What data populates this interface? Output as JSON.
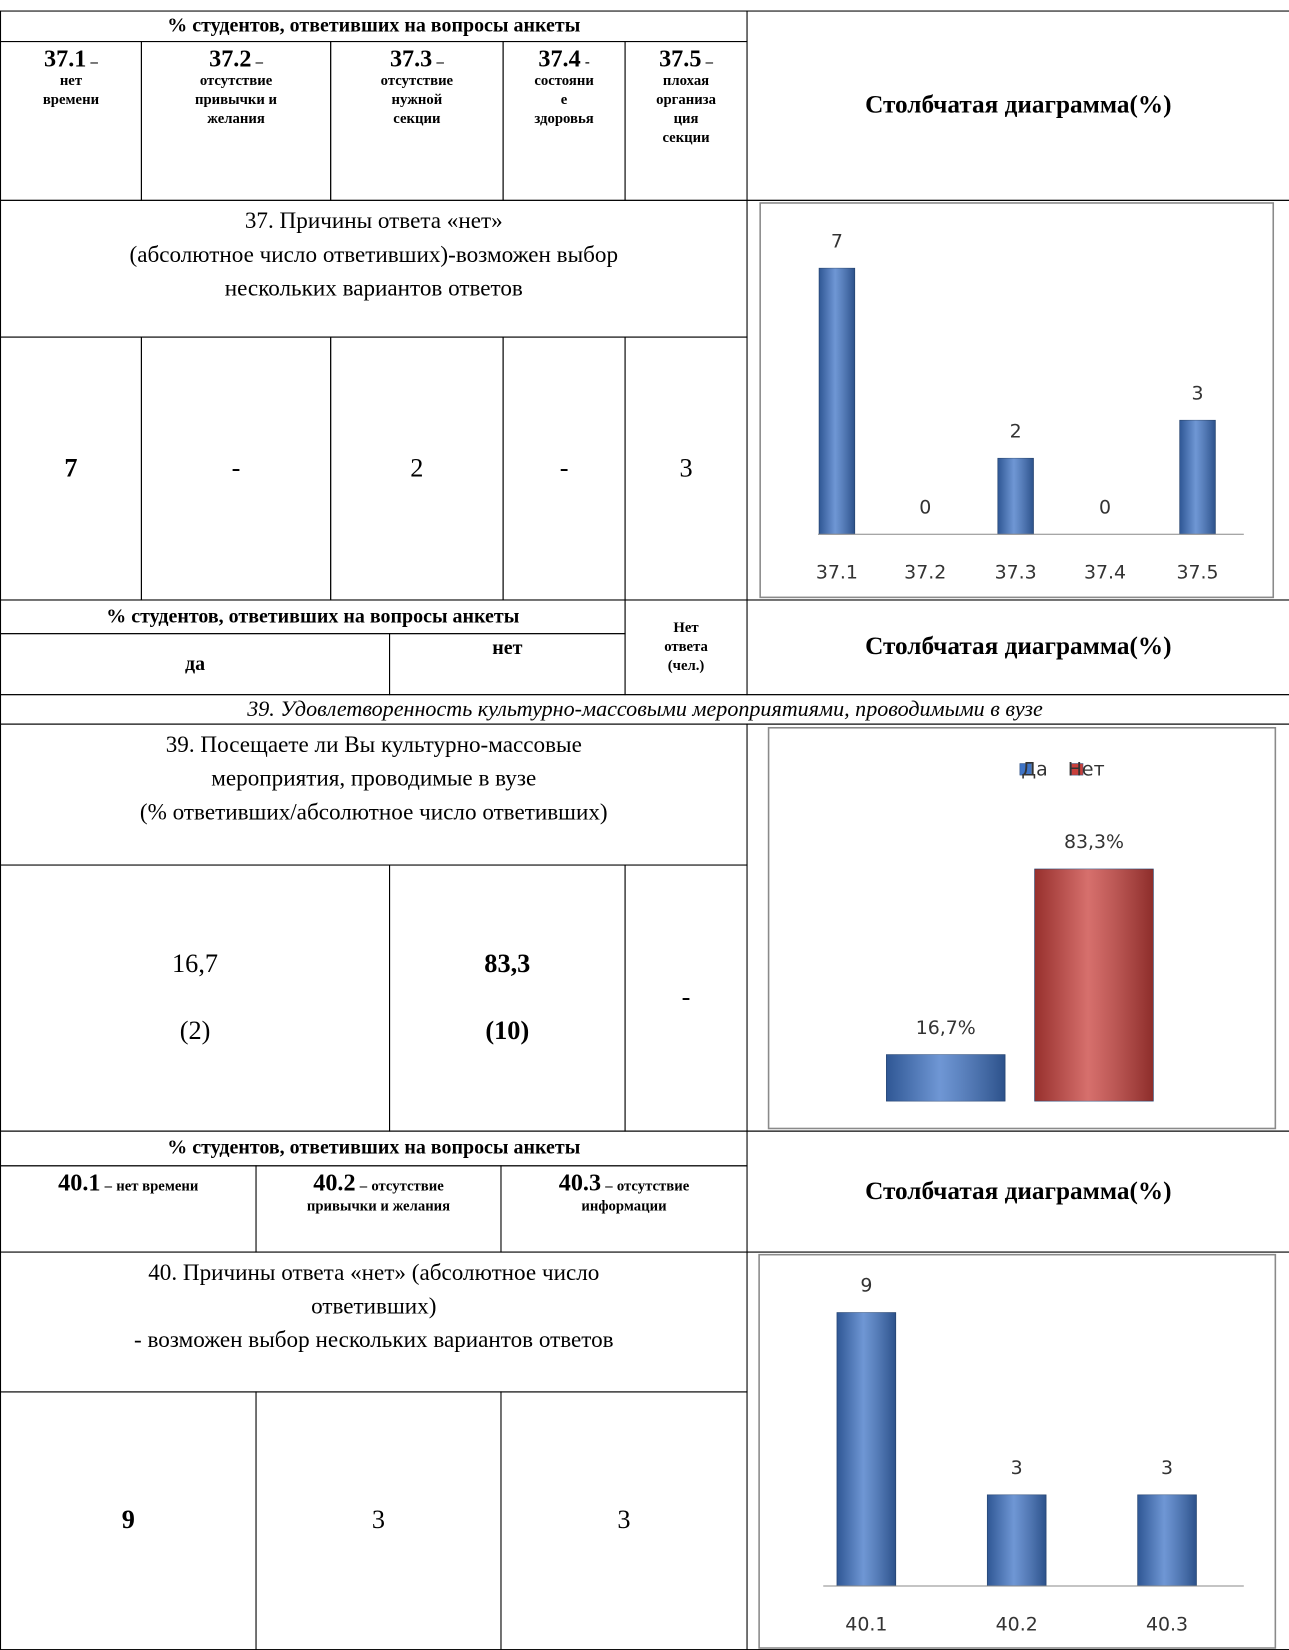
{
  "section37": {
    "header": "% студентов, ответивших на вопросы анкеты",
    "columns": [
      {
        "code": "37.1",
        "sep": "–",
        "desc": "нет\nвремени"
      },
      {
        "code": "37.2",
        "sep": "–",
        "desc": "отсутствие\nпривычки и\nжелания"
      },
      {
        "code": "37.3",
        "sep": "–",
        "desc": "отсутствие\nнужной\nсекции"
      },
      {
        "code": "37.4",
        "sep": "-",
        "desc": "состояни\nе\nздоровья"
      },
      {
        "code": "37.5",
        "sep": "–",
        "desc": "плохая\nорганиза\nция\nсекции"
      }
    ],
    "chart_heading": "Столбчатая диаграмма(%)",
    "question": "37. Причины ответа «нет»\n(абсолютное число ответивших)-возможен выбор\nнескольких вариантов ответов",
    "answers": [
      "7",
      "-",
      "2",
      "-",
      "3"
    ]
  },
  "section39": {
    "header": "% студентов, ответивших на вопросы анкеты",
    "no_answer_header": "Нет\nответа\n(чел.)",
    "yes_header": "да",
    "no_header": "нет",
    "chart_heading": "Столбчатая диаграмма(%)",
    "topic": "39. Удовлетворенность культурно-массовыми мероприятиями, проводимыми в вузе",
    "question": "39.  Посещаете ли Вы культурно-массовые\nмероприятия, проводимые в вузе\n(% ответивших/абсолютное число ответивших)",
    "answers": {
      "yes": "16,7",
      "yes_count": "(2)",
      "no": "83,3",
      "no_count": "(10)",
      "none": "-"
    }
  },
  "section40": {
    "header": "% студентов, ответивших на вопросы анкеты",
    "columns": [
      {
        "code": "40.1",
        "sep": "–",
        "desc": "нет времени"
      },
      {
        "code": "40.2",
        "sep": "–",
        "desc": "отсутствие\nпривычки и желания"
      },
      {
        "code": "40.3",
        "sep": "–",
        "desc": "отсутствие\nинформации"
      }
    ],
    "chart_heading": "Столбчатая диаграмма(%)",
    "question": "40. Причины ответа «нет» (абсолютное число\nответивших)\n- возможен выбор нескольких вариантов ответов",
    "answers": [
      "9",
      "3",
      "3"
    ]
  },
  "chart_data": [
    {
      "type": "bar",
      "categories": [
        "37.1",
        "37.2",
        "37.3",
        "37.4",
        "37.5"
      ],
      "values": [
        7,
        0,
        2,
        0,
        3
      ],
      "color": "#3f74c6",
      "ylim": [
        0,
        7
      ]
    },
    {
      "type": "bar",
      "categories": [
        null
      ],
      "legend": "top",
      "series": [
        {
          "name": "Да",
          "color": "#3f74c6",
          "values": [
            16.7
          ],
          "value_labels": [
            "16,7%"
          ]
        },
        {
          "name": "Нет",
          "color": "#c9403c",
          "values": [
            83.3
          ],
          "value_labels": [
            "83,3%"
          ]
        }
      ],
      "ylim": [
        0,
        100
      ]
    },
    {
      "type": "bar",
      "categories": [
        "40.1",
        "40.2",
        "40.3"
      ],
      "values": [
        9,
        3,
        3
      ],
      "color": "#3f74c6",
      "ylim": [
        0,
        9
      ]
    }
  ]
}
